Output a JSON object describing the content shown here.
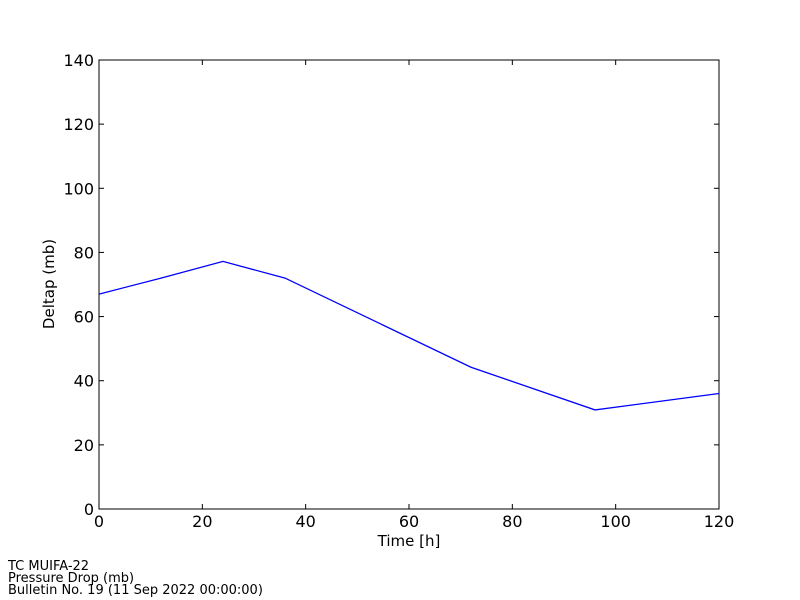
{
  "chart_data": {
    "type": "line",
    "x": [
      0,
      12,
      24,
      36,
      72,
      96,
      120
    ],
    "series": [
      {
        "name": "Deltap",
        "color": "#0000ff",
        "values": [
          67,
          72,
          77.2,
          72,
          44.2,
          30.9,
          36
        ]
      }
    ],
    "xlim": [
      0,
      120
    ],
    "xticks": [
      0,
      20,
      40,
      60,
      80,
      100,
      120
    ],
    "ylim": [
      0,
      140
    ],
    "yticks": [
      0,
      20,
      40,
      60,
      80,
      100,
      120,
      140
    ],
    "xlabel": "Time [h]",
    "ylabel": "Deltap (mb)",
    "footer": [
      "TC MUIFA-22",
      "Pressure Drop (mb)",
      "Bulletin No. 19 (11 Sep 2022  00:00:00)"
    ]
  }
}
